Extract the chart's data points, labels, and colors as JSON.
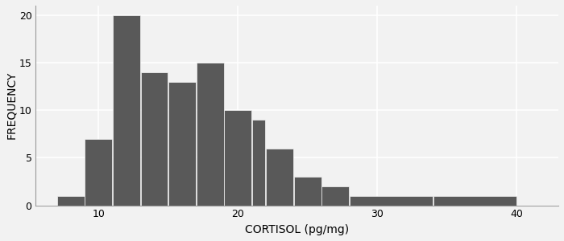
{
  "bin_edges": [
    7,
    9,
    11,
    13,
    15,
    17,
    19,
    21,
    22,
    24,
    26,
    28,
    34,
    40,
    42
  ],
  "frequencies": [
    1,
    7,
    20,
    14,
    13,
    15,
    10,
    9,
    6,
    3,
    2,
    1,
    1,
    0
  ],
  "bar_color": "#595959",
  "bar_edgecolor": "#f5f5f5",
  "xlabel": "CORTISOL (pg/mg)",
  "ylabel": "FREQUENCY",
  "xlim": [
    5.5,
    43
  ],
  "ylim": [
    0,
    21
  ],
  "yticks": [
    0,
    5,
    10,
    15,
    20
  ],
  "xticks": [
    10,
    20,
    30,
    40
  ],
  "bg_color": "#f2f2f2",
  "grid_color": "#ffffff",
  "xlabel_fontsize": 10,
  "ylabel_fontsize": 10,
  "tick_fontsize": 9,
  "linewidth": 0.5
}
